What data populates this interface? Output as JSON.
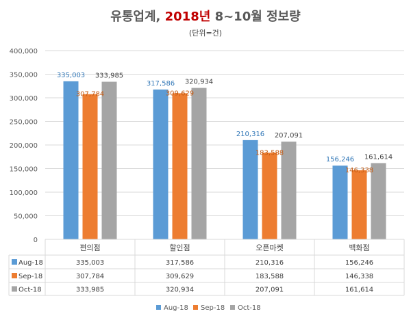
{
  "chart_data": {
    "type": "bar",
    "title_parts": {
      "prefix": "유통업계, ",
      "highlight": "2018년",
      "suffix": " 8~10월 정보량"
    },
    "subtitle": "(단위=건)",
    "categories": [
      "편의점",
      "할인점",
      "오픈마켓",
      "백화점"
    ],
    "series": [
      {
        "name": "Aug-18",
        "color": "#5b9bd5",
        "label_color": "#2e75b6",
        "values": [
          335003,
          317586,
          210316,
          156246
        ],
        "labels": [
          "335,003",
          "317,586",
          "210,316",
          "156,246"
        ]
      },
      {
        "name": "Sep-18",
        "color": "#ed7d31",
        "label_color": "#c55a11",
        "values": [
          307784,
          309629,
          183588,
          146338
        ],
        "labels": [
          "307,784",
          "309,629",
          "183,588",
          "146,338"
        ]
      },
      {
        "name": "Oct-18",
        "color": "#a5a5a5",
        "label_color": "#404040",
        "values": [
          333985,
          320934,
          207091,
          161614
        ],
        "labels": [
          "333,985",
          "320,934",
          "207,091",
          "161,614"
        ]
      }
    ],
    "ylim": [
      0,
      400000
    ],
    "yticks": [
      0,
      50000,
      100000,
      150000,
      200000,
      250000,
      300000,
      350000,
      400000
    ],
    "ytick_labels": [
      "0",
      "50,000",
      "100,000",
      "150,000",
      "200,000",
      "250,000",
      "300,000",
      "350,000",
      "400,000"
    ],
    "xlabel": "",
    "ylabel": "",
    "grid": true,
    "data_table": true,
    "legend_position": "bottom"
  }
}
